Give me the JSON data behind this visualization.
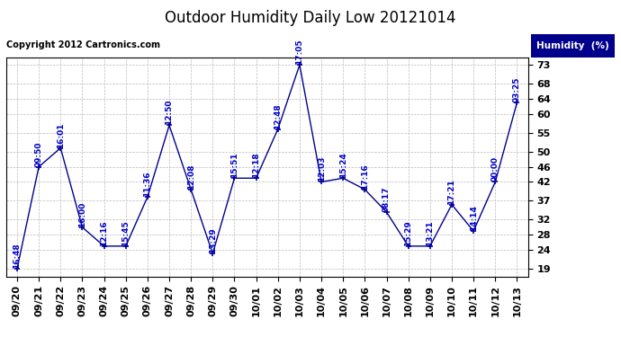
{
  "title": "Outdoor Humidity Daily Low 20121014",
  "copyright": "Copyright 2012 Cartronics.com",
  "legend_label": "Humidity  (%)",
  "x_labels": [
    "09/20",
    "09/21",
    "09/22",
    "09/23",
    "09/24",
    "09/25",
    "09/26",
    "09/27",
    "09/28",
    "09/29",
    "09/30",
    "10/01",
    "10/02",
    "10/03",
    "10/04",
    "10/05",
    "10/06",
    "10/07",
    "10/08",
    "10/09",
    "10/10",
    "10/11",
    "10/12",
    "10/13"
  ],
  "y_values": [
    19,
    46,
    51,
    30,
    25,
    25,
    38,
    57,
    40,
    23,
    43,
    43,
    56,
    73,
    42,
    43,
    40,
    34,
    25,
    25,
    36,
    29,
    42,
    63
  ],
  "point_labels": [
    "16:48",
    "09:50",
    "16:01",
    "16:00",
    "12:16",
    "15:45",
    "11:36",
    "12:50",
    "12:08",
    "13:29",
    "15:51",
    "12:18",
    "12:48",
    "17:05",
    "12:03",
    "15:24",
    "17:16",
    "08:17",
    "15:29",
    "13:21",
    "17:21",
    "14:14",
    "00:00",
    "03:25"
  ],
  "ylim_min": 17,
  "ylim_max": 75,
  "yticks": [
    19,
    24,
    28,
    32,
    37,
    42,
    46,
    50,
    55,
    60,
    64,
    68,
    73
  ],
  "line_color": "#00008B",
  "marker_color": "#00008B",
  "label_color": "#0000CD",
  "bg_color": "#FFFFFF",
  "grid_color": "#BBBBBB",
  "title_fontsize": 12,
  "label_fontsize": 6.5,
  "tick_fontsize": 8,
  "legend_bg": "#00008B",
  "legend_fg": "#FFFFFF"
}
